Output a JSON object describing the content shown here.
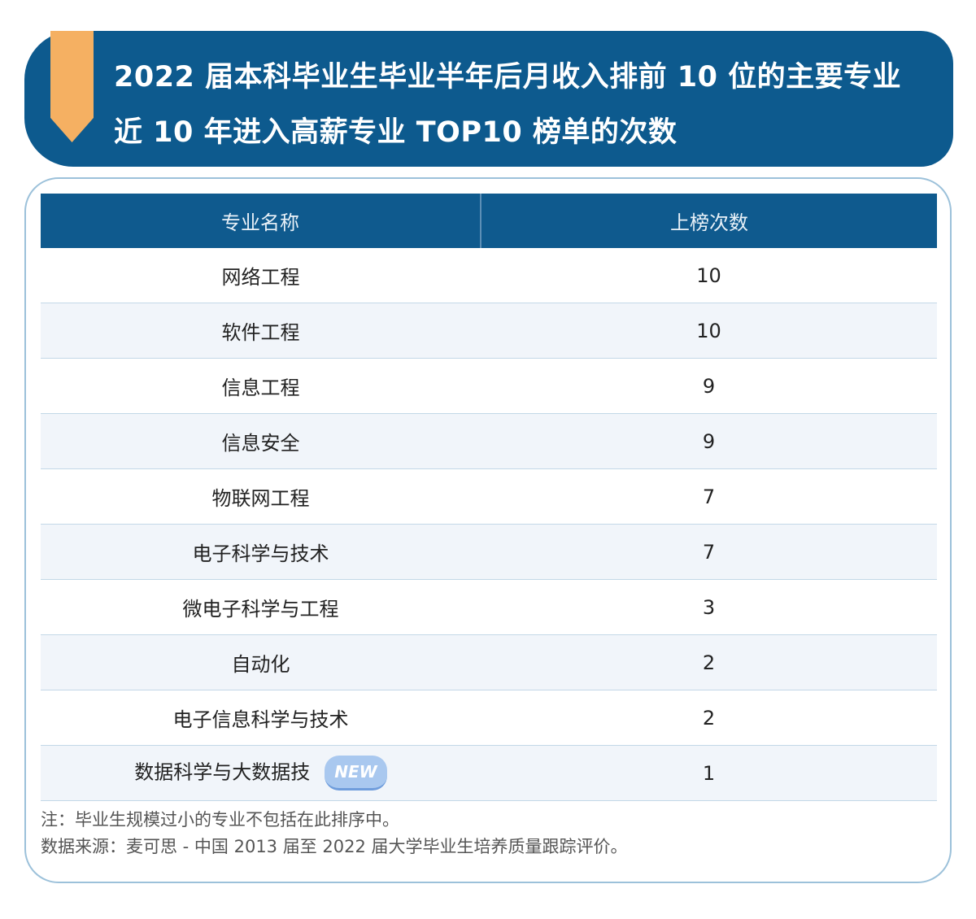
{
  "header": {
    "title_line1": "2022 届本科毕业生毕业半年后月收入排前 10 位的主要专业",
    "title_line2": "近 10 年进入高薪专业 TOP10 榜单的次数"
  },
  "table": {
    "columns": [
      "专业名称",
      "上榜次数"
    ],
    "rows": [
      {
        "name": "网络工程",
        "count": "10"
      },
      {
        "name": "软件工程",
        "count": "10"
      },
      {
        "name": "信息工程",
        "count": "9"
      },
      {
        "name": "信息安全",
        "count": "9"
      },
      {
        "name": "物联网工程",
        "count": "7"
      },
      {
        "name": "电子科学与技术",
        "count": "7"
      },
      {
        "name": "微电子科学与工程",
        "count": "3"
      },
      {
        "name": "自动化",
        "count": "2"
      },
      {
        "name": "电子信息科学与技术",
        "count": "2"
      },
      {
        "name": "数据科学与大数据技",
        "count": "1",
        "badge": "NEW"
      }
    ]
  },
  "footer": {
    "note": "注：毕业生规模过小的专业不包括在此排序中。",
    "source": "数据来源：麦可思 - 中国 2013 届至 2022 届大学毕业生培养质量跟踪评价。"
  },
  "colors": {
    "header_blue": "#0d5a8e",
    "ribbon_orange": "#f5b062",
    "badge_blue": "#a9c8ef"
  }
}
